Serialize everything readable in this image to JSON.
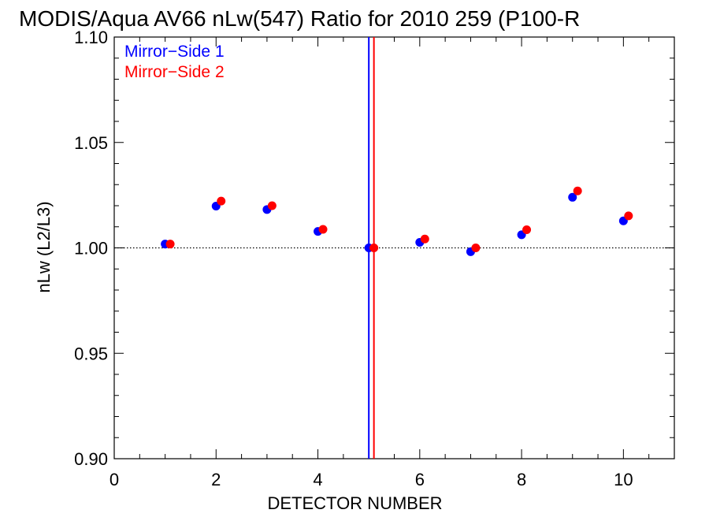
{
  "chart_data": {
    "type": "scatter",
    "title": "MODIS/Aqua AV66 nLw(547) Ratio for 2010 259 (P100-R",
    "xlabel": "DETECTOR NUMBER",
    "ylabel": "nLw (L2/L3)",
    "xlim": [
      0,
      11
    ],
    "ylim": [
      0.9,
      1.1
    ],
    "xticks": [
      0,
      2,
      4,
      6,
      8,
      10
    ],
    "xtick_labels": [
      "0",
      "2",
      "4",
      "6",
      "8",
      "10"
    ],
    "yticks": [
      0.9,
      0.95,
      1.0,
      1.05,
      1.1
    ],
    "ytick_labels": [
      "0.90",
      "0.95",
      "1.00",
      "1.05",
      "1.10"
    ],
    "reference_line_y": 1.0,
    "legend_position": "top-left",
    "series": [
      {
        "name": "Mirror−Side 1",
        "color": "#0000ff",
        "x": [
          1,
          2,
          3,
          4,
          5,
          6,
          7,
          8,
          9,
          10
        ],
        "values": [
          1.0018,
          1.0198,
          1.0182,
          1.0078,
          1.0,
          1.0026,
          0.9982,
          1.0062,
          1.024,
          1.0128
        ],
        "vertical_line_x": 5.0
      },
      {
        "name": "Mirror−Side 2",
        "color": "#ff0000",
        "x": [
          1.1,
          2.1,
          3.1,
          4.1,
          5.1,
          6.1,
          7.1,
          8.1,
          9.1,
          10.1
        ],
        "values": [
          1.0018,
          1.0222,
          1.02,
          1.0088,
          1.0,
          1.0042,
          1.0,
          1.0086,
          1.027,
          1.0152
        ],
        "vertical_line_x": 5.1
      }
    ]
  }
}
